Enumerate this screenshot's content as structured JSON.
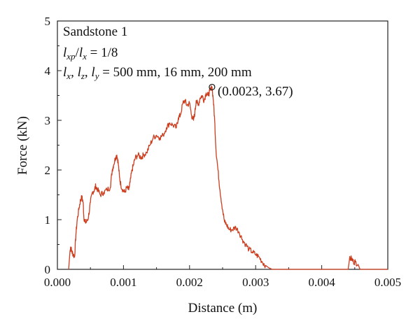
{
  "chart_data": {
    "type": "line",
    "title": "",
    "xlabel": "Distance (m)",
    "ylabel": "Force (kN)",
    "xlim": [
      0.0,
      0.005
    ],
    "ylim": [
      0,
      5
    ],
    "x_ticks": [
      "0.000",
      "0.001",
      "0.002",
      "0.003",
      "0.004",
      "0.005"
    ],
    "y_ticks": [
      "0",
      "1",
      "2",
      "3",
      "4",
      "5"
    ],
    "grid": false,
    "legend": "none",
    "annotations": {
      "specimen": "Sandstone 1",
      "ratio_line": "lxp/lx = 1/8",
      "dims_line": "lx, lz, ly = 500 mm, 16 mm, 200 mm",
      "peak_label": "(0.0023, 3.67)"
    },
    "peak": {
      "x": 0.00234,
      "y": 3.67
    },
    "series": [
      {
        "color": "#cc3d1e",
        "points": [
          [
            0.00017,
            0.0
          ],
          [
            0.00019,
            0.35
          ],
          [
            0.0002,
            0.45
          ],
          [
            0.00022,
            0.35
          ],
          [
            0.00024,
            0.3
          ],
          [
            0.00026,
            0.25
          ],
          [
            0.00028,
            0.7
          ],
          [
            0.0003,
            1.0
          ],
          [
            0.00033,
            1.25
          ],
          [
            0.00035,
            1.4
          ],
          [
            0.00037,
            1.45
          ],
          [
            0.00039,
            1.35
          ],
          [
            0.0004,
            1.05
          ],
          [
            0.00042,
            0.95
          ],
          [
            0.00044,
            0.95
          ],
          [
            0.00047,
            1.05
          ],
          [
            0.0005,
            1.35
          ],
          [
            0.00053,
            1.55
          ],
          [
            0.00056,
            1.6
          ],
          [
            0.00058,
            1.68
          ],
          [
            0.00061,
            1.6
          ],
          [
            0.00065,
            1.5
          ],
          [
            0.0007,
            1.55
          ],
          [
            0.00075,
            1.6
          ],
          [
            0.0008,
            1.65
          ],
          [
            0.00083,
            2.0
          ],
          [
            0.00085,
            2.1
          ],
          [
            0.00088,
            2.25
          ],
          [
            0.0009,
            2.3
          ],
          [
            0.00092,
            2.15
          ],
          [
            0.00094,
            1.85
          ],
          [
            0.00096,
            1.7
          ],
          [
            0.00099,
            1.6
          ],
          [
            0.00102,
            1.55
          ],
          [
            0.00105,
            1.65
          ],
          [
            0.00108,
            1.6
          ],
          [
            0.0011,
            1.75
          ],
          [
            0.00113,
            2.0
          ],
          [
            0.00115,
            2.1
          ],
          [
            0.00118,
            2.25
          ],
          [
            0.00122,
            2.3
          ],
          [
            0.00127,
            2.25
          ],
          [
            0.0013,
            2.3
          ],
          [
            0.00135,
            2.35
          ],
          [
            0.0014,
            2.5
          ],
          [
            0.00145,
            2.65
          ],
          [
            0.0015,
            2.7
          ],
          [
            0.00155,
            2.65
          ],
          [
            0.0016,
            2.7
          ],
          [
            0.00165,
            2.85
          ],
          [
            0.0017,
            2.95
          ],
          [
            0.00175,
            2.9
          ],
          [
            0.0018,
            2.85
          ],
          [
            0.00183,
            3.05
          ],
          [
            0.00186,
            3.1
          ],
          [
            0.0019,
            3.35
          ],
          [
            0.00193,
            3.4
          ],
          [
            0.00196,
            3.3
          ],
          [
            0.002,
            3.35
          ],
          [
            0.00203,
            3.1
          ],
          [
            0.00206,
            3.0
          ],
          [
            0.00208,
            3.15
          ],
          [
            0.0021,
            3.4
          ],
          [
            0.00213,
            3.3
          ],
          [
            0.00216,
            3.45
          ],
          [
            0.00219,
            3.5
          ],
          [
            0.00222,
            3.4
          ],
          [
            0.00225,
            3.55
          ],
          [
            0.00228,
            3.5
          ],
          [
            0.00231,
            3.6
          ],
          [
            0.00234,
            3.67
          ],
          [
            0.00236,
            3.4
          ],
          [
            0.00238,
            3.0
          ],
          [
            0.0024,
            2.4
          ],
          [
            0.00243,
            2.0
          ],
          [
            0.00246,
            1.6
          ],
          [
            0.0025,
            1.2
          ],
          [
            0.00253,
            0.95
          ],
          [
            0.00256,
            0.9
          ],
          [
            0.0026,
            0.8
          ],
          [
            0.00265,
            0.8
          ],
          [
            0.0027,
            0.85
          ],
          [
            0.00275,
            0.75
          ],
          [
            0.0028,
            0.6
          ],
          [
            0.00285,
            0.5
          ],
          [
            0.0029,
            0.4
          ],
          [
            0.00295,
            0.35
          ],
          [
            0.003,
            0.3
          ],
          [
            0.00305,
            0.25
          ],
          [
            0.0031,
            0.15
          ],
          [
            0.00315,
            0.08
          ],
          [
            0.0032,
            0.03
          ],
          [
            0.00325,
            0.0
          ],
          [
            0.0044,
            0.0
          ],
          [
            0.00442,
            0.2
          ],
          [
            0.00445,
            0.22
          ],
          [
            0.00448,
            0.15
          ],
          [
            0.00451,
            0.15
          ],
          [
            0.00455,
            0.1
          ],
          [
            0.00458,
            0.0
          ],
          [
            0.005,
            0.0
          ]
        ]
      }
    ]
  }
}
